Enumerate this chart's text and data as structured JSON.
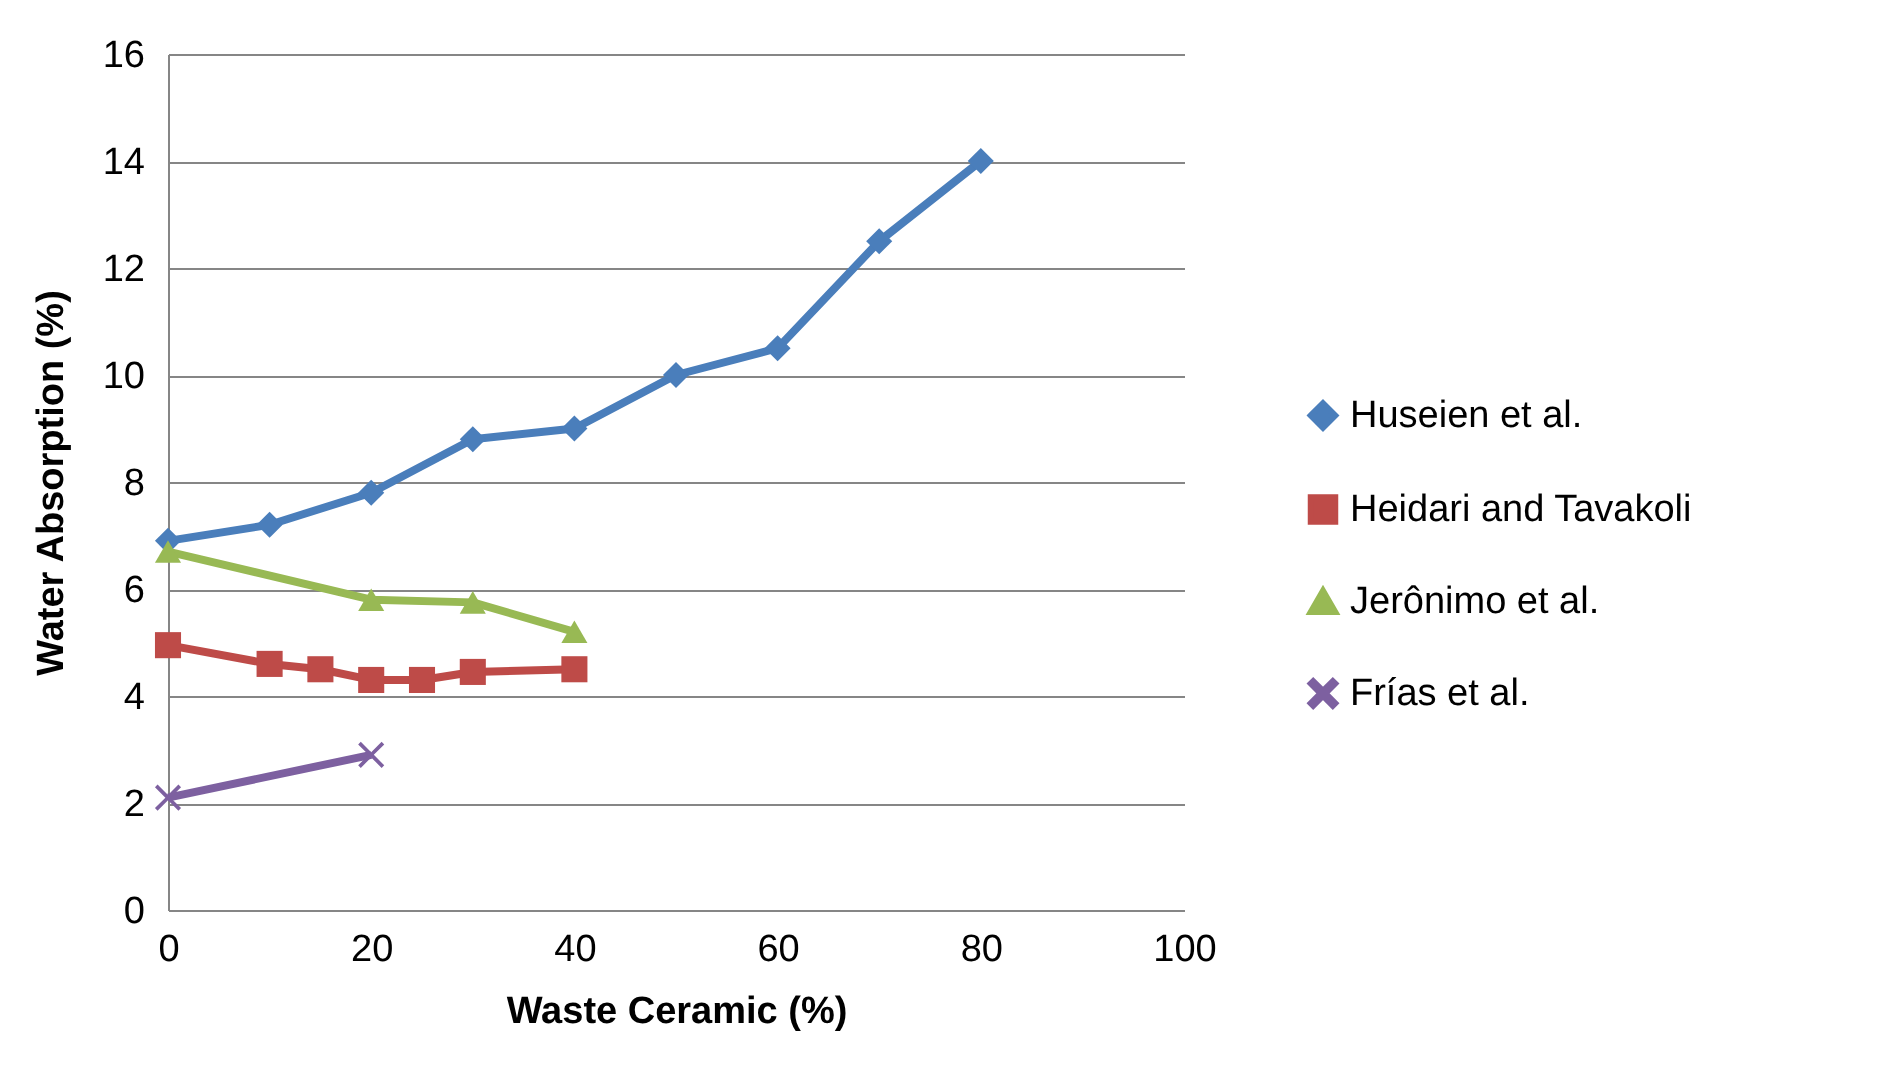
{
  "chart_data": {
    "type": "line",
    "xlabel": "Waste Ceramic (%)",
    "ylabel": "Water Absorption (%)",
    "xlim": [
      0,
      100
    ],
    "xticks": [
      0,
      20,
      40,
      60,
      80,
      100
    ],
    "ylim": [
      0,
      16
    ],
    "yticks": [
      0,
      2,
      4,
      6,
      8,
      10,
      12,
      14,
      16
    ],
    "grid": "y",
    "legend": "right",
    "line_style": "solid",
    "series": [
      {
        "name": "Huseien et al.",
        "color": "#4a7ebb",
        "marker": "diamond",
        "x": [
          0,
          10,
          20,
          30,
          40,
          50,
          60,
          70,
          80
        ],
        "values": [
          6.9,
          7.2,
          7.8,
          8.8,
          9.0,
          10.0,
          10.5,
          12.5,
          14.0
        ]
      },
      {
        "name": "Heidari and Tavakoli",
        "color": "#be4b48",
        "marker": "square",
        "x": [
          0,
          10,
          15,
          20,
          25,
          30,
          40
        ],
        "values": [
          4.95,
          4.6,
          4.5,
          4.3,
          4.3,
          4.45,
          4.5
        ]
      },
      {
        "name": "Jerônimo et al.",
        "color": "#98b954",
        "marker": "triangle",
        "x": [
          0,
          20,
          30,
          40
        ],
        "values": [
          6.7,
          5.8,
          5.75,
          5.2
        ]
      },
      {
        "name": "Frías et al.",
        "color": "#7d60a0",
        "marker": "cross",
        "x": [
          0,
          20
        ],
        "values": [
          2.1,
          2.9
        ]
      }
    ]
  }
}
